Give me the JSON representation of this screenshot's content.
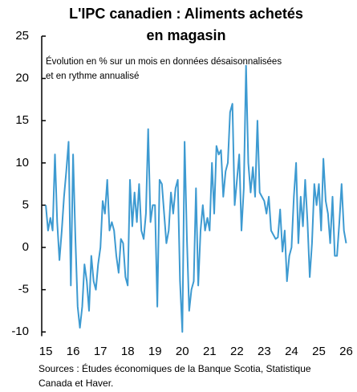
{
  "chart_data": {
    "type": "line",
    "title": [
      "L'IPC canadien : Aliments achetés",
      "en magasin"
    ],
    "subtitle": [
      "Évolution en % sur un mois en données désaisonnalisées",
      "et en rythme annualisé"
    ],
    "source": [
      "Sources : Études économiques de la Banque Scotia, Statistique",
      "Canada et Haver."
    ],
    "xlim": [
      14.85,
      26.25
    ],
    "xticks": [
      15,
      16,
      17,
      18,
      19,
      20,
      21,
      22,
      23,
      24,
      25,
      26
    ],
    "ylim": [
      -10.5,
      25
    ],
    "yticks": [
      -10,
      -5,
      0,
      5,
      10,
      15,
      20,
      25
    ],
    "grid": false,
    "series": [
      {
        "color": "#3d9ad1",
        "values": [
          5,
          2,
          3.5,
          2,
          11,
          3,
          -1.5,
          2,
          6,
          9,
          12.5,
          -4.5,
          11,
          1,
          -7,
          -9.5,
          -7,
          -2,
          -4,
          -7.5,
          -1,
          -4,
          -5,
          -2,
          0,
          5.5,
          4,
          8,
          2,
          3,
          2,
          -1,
          -3,
          1,
          0.5,
          -3.5,
          -4.5,
          8,
          2.5,
          6.5,
          3,
          7.5,
          2,
          1,
          4,
          14,
          3,
          5,
          5,
          -7,
          8,
          7.5,
          4,
          0.5,
          2,
          6.5,
          4,
          7,
          8,
          -4,
          -10,
          12.5,
          1,
          -7.5,
          -5,
          -4,
          7,
          -4.5,
          2,
          5,
          2,
          3.5,
          2,
          10,
          4,
          12,
          11,
          11.5,
          6,
          9,
          10,
          16,
          17,
          5,
          8,
          11,
          2,
          7,
          21.5,
          10,
          6.5,
          9.5,
          6,
          15,
          6.5,
          6,
          5.5,
          4,
          6,
          2,
          1.5,
          1,
          1.2,
          4.5,
          -0.5,
          2,
          -4,
          -1,
          0,
          6,
          10,
          0.5,
          6,
          2.5,
          8,
          3,
          -3.5,
          0.5,
          7.5,
          5,
          7.5,
          2,
          10.5,
          5.5,
          4,
          0.5,
          6,
          -1,
          -1,
          3,
          7.5,
          2,
          0.5
        ]
      }
    ]
  }
}
